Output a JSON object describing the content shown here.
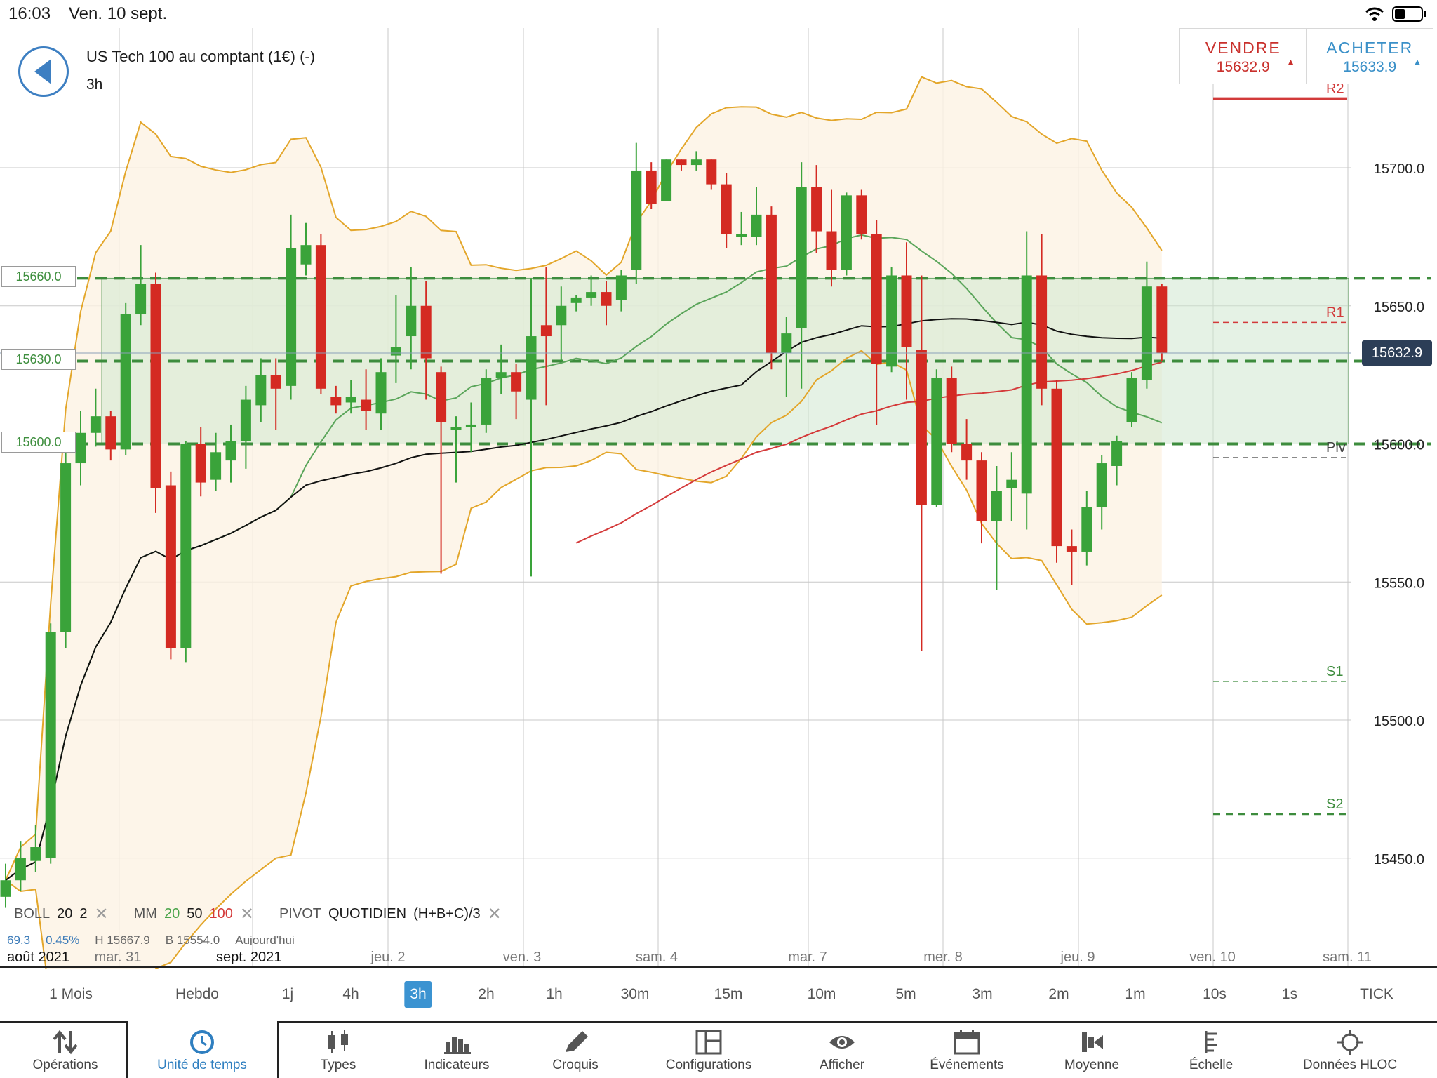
{
  "status": {
    "time": "16:03",
    "date": "Ven. 10 sept."
  },
  "instrument": {
    "name": "US Tech 100 au comptant (1€) (-)",
    "timeframe": "3h"
  },
  "trade": {
    "sell": {
      "label": "VENDRE",
      "price": "15632.9",
      "color": "#c9302c"
    },
    "buy": {
      "label": "ACHETER",
      "price": "15633.9",
      "color": "#3a90c8"
    }
  },
  "level_tags": [
    "15660.0",
    "15630.0",
    "15600.0"
  ],
  "current_price": "15632.9",
  "pivot_labels": {
    "r2": "R2",
    "r1": "R1",
    "piv": "Piv",
    "s1": "S1",
    "s2": "S2"
  },
  "indicators": {
    "boll": {
      "name": "BOLL",
      "period": "20",
      "dev": "2"
    },
    "mm": {
      "name": "MM",
      "p1": "20",
      "p2": "50",
      "p3": "100"
    },
    "pivot": {
      "name": "PIVOT",
      "mode": "QUOTIDIEN",
      "formula": "(H+B+C)/3"
    }
  },
  "ohlc_row": {
    "a": "69.3",
    "b": "0.45%",
    "h": "H 15667.9",
    "low": "B 15554.0",
    "day": "Aujourd'hui"
  },
  "timeframes": [
    "1 Mois",
    "Hebdo",
    "1j",
    "4h",
    "3h",
    "2h",
    "1h",
    "30m",
    "15m",
    "10m",
    "5m",
    "3m",
    "2m",
    "1m",
    "10s",
    "1s",
    "TICK"
  ],
  "active_timeframe": "3h",
  "toolbar": [
    {
      "label": "Opérations",
      "icon": "operations-icon"
    },
    {
      "label": "Unité de temps",
      "icon": "clock-icon"
    },
    {
      "label": "Types",
      "icon": "candles-icon"
    },
    {
      "label": "Indicateurs",
      "icon": "bars-icon"
    },
    {
      "label": "Croquis",
      "icon": "pencil-icon"
    },
    {
      "label": "Configurations",
      "icon": "layout-icon"
    },
    {
      "label": "Afficher",
      "icon": "eye-icon"
    },
    {
      "label": "Événements",
      "icon": "calendar-icon"
    },
    {
      "label": "Moyenne",
      "icon": "average-icon"
    },
    {
      "label": "Échelle",
      "icon": "scale-icon"
    },
    {
      "label": "Données HLOC",
      "icon": "crosshair-icon"
    }
  ],
  "chart_data": {
    "type": "candlestick",
    "y_ticks": [
      "15700.0",
      "15650.0",
      "15600.0",
      "15550.0",
      "15500.0",
      "15450.0"
    ],
    "ylim": [
      15422,
      15742
    ],
    "x_labels": [
      "août 2021",
      "mar. 31",
      "sept. 2021",
      "jeu. 2",
      "ven. 3",
      "sam. 4",
      "mar. 7",
      "mer. 8",
      "jeu. 9",
      "ven. 10",
      "sam. 11"
    ],
    "colors": {
      "up": "#3aa33a",
      "down": "#d42a22",
      "band": "#e3a62a",
      "mm20": "#5aa55a",
      "mm50": "#111111",
      "mm100": "#d43a3a",
      "zone": "#cfe8cf"
    },
    "zone": {
      "top": 15660,
      "mid": 15630,
      "bottom": 15600
    },
    "pivots": {
      "r2": 15725,
      "r1": 15644,
      "piv": 15595,
      "s1": 15514,
      "s2": 15466
    },
    "candles": [
      {
        "o": 15436,
        "c": 15442,
        "h": 15448,
        "l": 15432
      },
      {
        "o": 15442,
        "c": 15450,
        "h": 15456,
        "l": 15438
      },
      {
        "o": 15449,
        "c": 15454,
        "h": 15462,
        "l": 15445
      },
      {
        "o": 15450,
        "c": 15532,
        "h": 15535,
        "l": 15448
      },
      {
        "o": 15532,
        "c": 15593,
        "h": 15598,
        "l": 15526
      },
      {
        "o": 15593,
        "c": 15604,
        "h": 15612,
        "l": 15585
      },
      {
        "o": 15604,
        "c": 15610,
        "h": 15620,
        "l": 15599
      },
      {
        "o": 15610,
        "c": 15598,
        "h": 15612,
        "l": 15594
      },
      {
        "o": 15598,
        "c": 15647,
        "h": 15651,
        "l": 15596
      },
      {
        "o": 15647,
        "c": 15658,
        "h": 15672,
        "l": 15643
      },
      {
        "o": 15658,
        "c": 15584,
        "h": 15662,
        "l": 15575
      },
      {
        "o": 15585,
        "c": 15526,
        "h": 15590,
        "l": 15522
      },
      {
        "o": 15526,
        "c": 15600,
        "h": 15601,
        "l": 15521
      },
      {
        "o": 15600,
        "c": 15586,
        "h": 15606,
        "l": 15581
      },
      {
        "o": 15587,
        "c": 15597,
        "h": 15604,
        "l": 15583
      },
      {
        "o": 15594,
        "c": 15601,
        "h": 15607,
        "l": 15586
      },
      {
        "o": 15601,
        "c": 15616,
        "h": 15621,
        "l": 15591
      },
      {
        "o": 15614,
        "c": 15625,
        "h": 15631,
        "l": 15608
      },
      {
        "o": 15625,
        "c": 15620,
        "h": 15631,
        "l": 15605
      },
      {
        "o": 15621,
        "c": 15671,
        "h": 15683,
        "l": 15616
      },
      {
        "o": 15665,
        "c": 15672,
        "h": 15680,
        "l": 15661
      },
      {
        "o": 15672,
        "c": 15620,
        "h": 15676,
        "l": 15618
      },
      {
        "o": 15617,
        "c": 15614,
        "h": 15621,
        "l": 15611
      },
      {
        "o": 15615,
        "c": 15617,
        "h": 15623,
        "l": 15611
      },
      {
        "o": 15616,
        "c": 15612,
        "h": 15627,
        "l": 15605
      },
      {
        "o": 15611,
        "c": 15626,
        "h": 15631,
        "l": 15605
      },
      {
        "o": 15632,
        "c": 15635,
        "h": 15654,
        "l": 15622
      },
      {
        "o": 15639,
        "c": 15650,
        "h": 15664,
        "l": 15627
      },
      {
        "o": 15650,
        "c": 15631,
        "h": 15659,
        "l": 15616
      },
      {
        "o": 15626,
        "c": 15608,
        "h": 15628,
        "l": 15553
      },
      {
        "o": 15605,
        "c": 15606,
        "h": 15610,
        "l": 15586
      },
      {
        "o": 15606,
        "c": 15607,
        "h": 15615,
        "l": 15597
      },
      {
        "o": 15607,
        "c": 15624,
        "h": 15627,
        "l": 15604
      },
      {
        "o": 15624,
        "c": 15626,
        "h": 15636,
        "l": 15618
      },
      {
        "o": 15626,
        "c": 15619,
        "h": 15629,
        "l": 15609
      },
      {
        "o": 15616,
        "c": 15639,
        "h": 15660,
        "l": 15552
      },
      {
        "o": 15643,
        "c": 15639,
        "h": 15664,
        "l": 15614
      },
      {
        "o": 15643,
        "c": 15650,
        "h": 15657,
        "l": 15630
      },
      {
        "o": 15651,
        "c": 15653,
        "h": 15654,
        "l": 15648
      },
      {
        "o": 15653,
        "c": 15655,
        "h": 15661,
        "l": 15650
      },
      {
        "o": 15655,
        "c": 15650,
        "h": 15659,
        "l": 15643
      },
      {
        "o": 15652,
        "c": 15661,
        "h": 15663,
        "l": 15648
      },
      {
        "o": 15663,
        "c": 15699,
        "h": 15709,
        "l": 15658
      },
      {
        "o": 15699,
        "c": 15687,
        "h": 15702,
        "l": 15685
      },
      {
        "o": 15688,
        "c": 15703,
        "h": 15703,
        "l": 15688
      },
      {
        "o": 15703,
        "c": 15701,
        "h": 15703,
        "l": 15699
      },
      {
        "o": 15701,
        "c": 15703,
        "h": 15706,
        "l": 15699
      },
      {
        "o": 15703,
        "c": 15694,
        "h": 15703,
        "l": 15692
      },
      {
        "o": 15694,
        "c": 15676,
        "h": 15698,
        "l": 15671
      },
      {
        "o": 15675,
        "c": 15676,
        "h": 15684,
        "l": 15672
      },
      {
        "o": 15675,
        "c": 15683,
        "h": 15693,
        "l": 15672
      },
      {
        "o": 15683,
        "c": 15633,
        "h": 15686,
        "l": 15627
      },
      {
        "o": 15633,
        "c": 15640,
        "h": 15646,
        "l": 15617
      },
      {
        "o": 15642,
        "c": 15693,
        "h": 15702,
        "l": 15620
      },
      {
        "o": 15693,
        "c": 15677,
        "h": 15701,
        "l": 15669
      },
      {
        "o": 15677,
        "c": 15663,
        "h": 15692,
        "l": 15657
      },
      {
        "o": 15663,
        "c": 15690,
        "h": 15691,
        "l": 15661
      },
      {
        "o": 15690,
        "c": 15676,
        "h": 15692,
        "l": 15674
      },
      {
        "o": 15676,
        "c": 15629,
        "h": 15681,
        "l": 15607
      },
      {
        "o": 15628,
        "c": 15661,
        "h": 15664,
        "l": 15626
      },
      {
        "o": 15661,
        "c": 15635,
        "h": 15673,
        "l": 15616
      },
      {
        "o": 15634,
        "c": 15578,
        "h": 15661,
        "l": 15525
      },
      {
        "o": 15578,
        "c": 15624,
        "h": 15627,
        "l": 15577
      },
      {
        "o": 15624,
        "c": 15600,
        "h": 15628,
        "l": 15597
      },
      {
        "o": 15600,
        "c": 15594,
        "h": 15609,
        "l": 15587
      },
      {
        "o": 15594,
        "c": 15572,
        "h": 15597,
        "l": 15564
      },
      {
        "o": 15572,
        "c": 15583,
        "h": 15592,
        "l": 15547
      },
      {
        "o": 15584,
        "c": 15587,
        "h": 15597,
        "l": 15572
      },
      {
        "o": 15582,
        "c": 15661,
        "h": 15677,
        "l": 15569
      },
      {
        "o": 15661,
        "c": 15620,
        "h": 15676,
        "l": 15614
      },
      {
        "o": 15620,
        "c": 15563,
        "h": 15623,
        "l": 15557
      },
      {
        "o": 15563,
        "c": 15561,
        "h": 15569,
        "l": 15549
      },
      {
        "o": 15561,
        "c": 15577,
        "h": 15583,
        "l": 15556
      },
      {
        "o": 15577,
        "c": 15593,
        "h": 15596,
        "l": 15569
      },
      {
        "o": 15592,
        "c": 15601,
        "h": 15603,
        "l": 15585
      },
      {
        "o": 15608,
        "c": 15624,
        "h": 15626,
        "l": 15606
      },
      {
        "o": 15623,
        "c": 15657,
        "h": 15666,
        "l": 15620
      },
      {
        "o": 15657,
        "c": 15633,
        "h": 15658,
        "l": 15630
      }
    ]
  }
}
